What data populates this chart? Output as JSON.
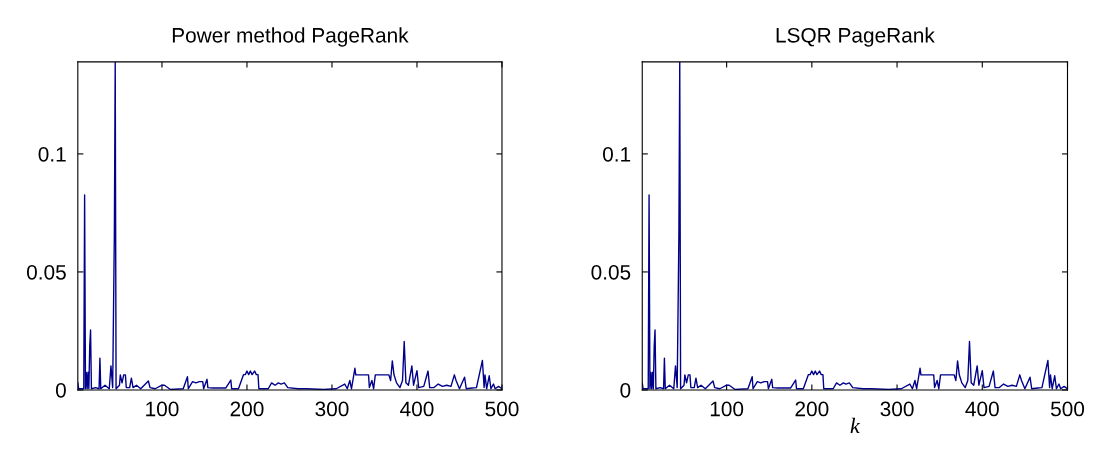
{
  "chart_data": [
    {
      "type": "line",
      "title": "Power method PageRank",
      "xlim": [
        1,
        500
      ],
      "xticks": [
        100,
        200,
        300,
        400,
        500
      ],
      "ylim": [
        0,
        0.139
      ],
      "yticks": [
        0,
        0.05,
        0.1
      ],
      "grid": false,
      "legend": false,
      "x": [
        1,
        2,
        8,
        9,
        10,
        11,
        12,
        13,
        14,
        15,
        16,
        17,
        22,
        26,
        27,
        28,
        33,
        38,
        40,
        42,
        44,
        45,
        46,
        50,
        51,
        53,
        55,
        57,
        58,
        62,
        64,
        66,
        70,
        75,
        84,
        86,
        92,
        100,
        103,
        110,
        125,
        130,
        131,
        136,
        140,
        144,
        148,
        149,
        153,
        154,
        160,
        175,
        181,
        182,
        190,
        196,
        198,
        200,
        202,
        204,
        206,
        209,
        211,
        213,
        214,
        225,
        229,
        233,
        237,
        240,
        244,
        248,
        260,
        270,
        290,
        305,
        315,
        318,
        321,
        323,
        327,
        328,
        333,
        338,
        343,
        344,
        347,
        349,
        351,
        355,
        360,
        364,
        367,
        369,
        371,
        373,
        376,
        380,
        383,
        385,
        387,
        390,
        394,
        396,
        400,
        402,
        408,
        413,
        415,
        420,
        425,
        430,
        435,
        440,
        444,
        446,
        450,
        456,
        458,
        465,
        470,
        477,
        479,
        480,
        482,
        485,
        487,
        490,
        492,
        496,
        500
      ],
      "series": [
        {
          "color": "#00008b",
          "values": [
            0.003,
            0.0005,
            0.0005,
            0.0826,
            0.0005,
            0.0074,
            0.0005,
            0.0075,
            0.0005,
            0.0184,
            0.0254,
            0.0005,
            0.001,
            0.0005,
            0.0135,
            0.0005,
            0.002,
            0.0005,
            0.0102,
            0.001,
            0.0665,
            0.139,
            0.0005,
            0.002,
            0.0064,
            0.003,
            0.0064,
            0.0064,
            0.001,
            0.001,
            0.005,
            0.001,
            0.002,
            0.0005,
            0.0038,
            0.001,
            0.0005,
            0.002,
            0.002,
            0.0002,
            0.0005,
            0.0056,
            0.0005,
            0.0035,
            0.003,
            0.0035,
            0.0035,
            0.0005,
            0.0045,
            0.001,
            0.0008,
            0.0008,
            0.0042,
            0.0005,
            0.0005,
            0.0065,
            0.0065,
            0.008,
            0.0065,
            0.008,
            0.0065,
            0.008,
            0.0065,
            0.0065,
            0.0005,
            0.0005,
            0.003,
            0.002,
            0.003,
            0.0025,
            0.003,
            0.001,
            0.0005,
            0.0005,
            0.0002,
            0.0005,
            0.0025,
            0.0005,
            0.004,
            0.0005,
            0.0092,
            0.0064,
            0.0064,
            0.0064,
            0.0064,
            0.001,
            0.004,
            0.0005,
            0.0064,
            0.0064,
            0.0064,
            0.0064,
            0.0064,
            0.004,
            0.0123,
            0.0064,
            0.003,
            0.001,
            0.004,
            0.0205,
            0.003,
            0.002,
            0.0102,
            0.002,
            0.0082,
            0.001,
            0.0015,
            0.008,
            0.001,
            0.001,
            0.0025,
            0.0015,
            0.002,
            0.0015,
            0.0064,
            0.004,
            0.0005,
            0.0054,
            0.0005,
            0.0008,
            0.001,
            0.0125,
            0.001,
            0.0064,
            0.0005,
            0.006,
            0.0005,
            0.0025,
            0.0005,
            0.0015,
            0.0005
          ]
        }
      ]
    },
    {
      "type": "line",
      "title": "LSQR PageRank",
      "xlabel": "k",
      "xlim": [
        1,
        500
      ],
      "xticks": [
        100,
        200,
        300,
        400,
        500
      ],
      "ylim": [
        0,
        0.139
      ],
      "yticks": [
        0,
        0.05,
        0.1
      ],
      "grid": false,
      "legend": false,
      "x": [
        1,
        2,
        8,
        9,
        10,
        11,
        12,
        13,
        14,
        15,
        16,
        17,
        22,
        26,
        27,
        28,
        33,
        38,
        40,
        42,
        44,
        45,
        46,
        50,
        51,
        53,
        55,
        57,
        58,
        62,
        64,
        66,
        70,
        75,
        84,
        86,
        92,
        100,
        103,
        110,
        125,
        130,
        131,
        136,
        140,
        144,
        148,
        149,
        153,
        154,
        160,
        175,
        181,
        182,
        190,
        196,
        198,
        200,
        202,
        204,
        206,
        209,
        211,
        213,
        214,
        225,
        229,
        233,
        237,
        240,
        244,
        248,
        260,
        270,
        290,
        305,
        315,
        318,
        321,
        323,
        327,
        328,
        333,
        338,
        343,
        344,
        347,
        349,
        351,
        355,
        360,
        364,
        367,
        369,
        371,
        373,
        376,
        380,
        383,
        385,
        387,
        390,
        394,
        396,
        400,
        402,
        408,
        413,
        415,
        420,
        425,
        430,
        435,
        440,
        444,
        446,
        450,
        456,
        458,
        465,
        470,
        477,
        479,
        480,
        482,
        485,
        487,
        490,
        492,
        496,
        500
      ],
      "series": [
        {
          "color": "#00008b",
          "values": [
            0.003,
            0.0005,
            0.0005,
            0.0826,
            0.0005,
            0.0074,
            0.0005,
            0.0075,
            0.0005,
            0.0184,
            0.0254,
            0.0005,
            0.001,
            0.0005,
            0.0135,
            0.0005,
            0.002,
            0.0005,
            0.0102,
            0.001,
            0.0665,
            0.139,
            0.0005,
            0.002,
            0.0064,
            0.003,
            0.0064,
            0.0064,
            0.001,
            0.001,
            0.005,
            0.001,
            0.002,
            0.0005,
            0.0038,
            0.001,
            0.0005,
            0.002,
            0.002,
            0.0002,
            0.0005,
            0.0056,
            0.0005,
            0.0035,
            0.003,
            0.0035,
            0.0035,
            0.0005,
            0.0045,
            0.001,
            0.0008,
            0.0008,
            0.0042,
            0.0005,
            0.0005,
            0.0065,
            0.0065,
            0.008,
            0.0065,
            0.008,
            0.0065,
            0.008,
            0.0065,
            0.0065,
            0.0005,
            0.0005,
            0.003,
            0.002,
            0.003,
            0.0025,
            0.003,
            0.001,
            0.0005,
            0.0005,
            0.0002,
            0.0005,
            0.0025,
            0.0005,
            0.004,
            0.0005,
            0.0092,
            0.0064,
            0.0064,
            0.0064,
            0.0064,
            0.001,
            0.004,
            0.0005,
            0.0064,
            0.0064,
            0.0064,
            0.0064,
            0.0064,
            0.004,
            0.0123,
            0.0064,
            0.003,
            0.001,
            0.004,
            0.0205,
            0.003,
            0.002,
            0.0102,
            0.002,
            0.0082,
            0.001,
            0.0015,
            0.008,
            0.001,
            0.001,
            0.0025,
            0.0015,
            0.002,
            0.0015,
            0.0064,
            0.004,
            0.0005,
            0.0054,
            0.0005,
            0.0008,
            0.001,
            0.0125,
            0.001,
            0.0064,
            0.0005,
            0.006,
            0.0005,
            0.0025,
            0.0005,
            0.0015,
            0.0005
          ]
        }
      ]
    }
  ]
}
